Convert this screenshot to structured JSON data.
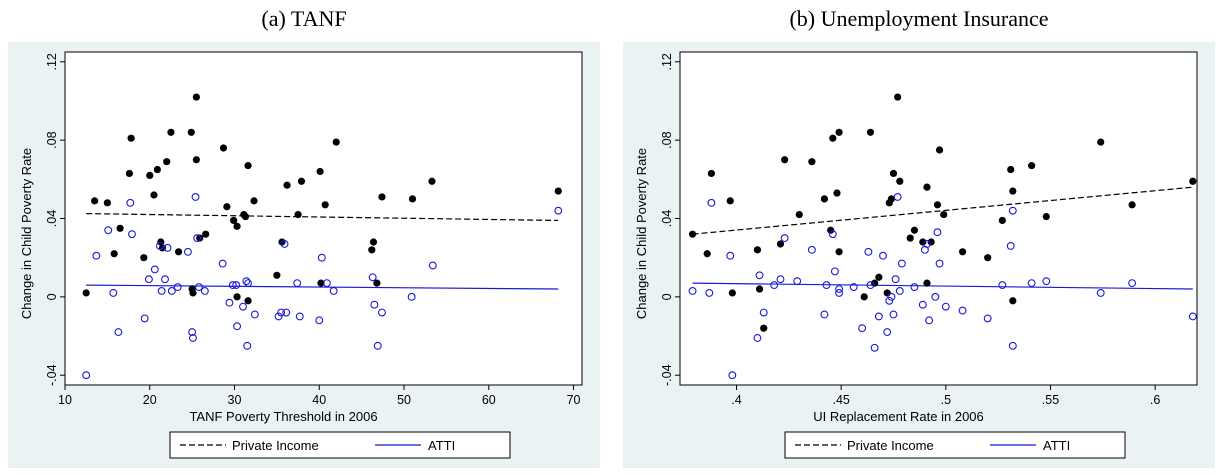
{
  "colors": {
    "panel_bg": "#eaf2f3",
    "plot_bg": "#ffffff",
    "private": "#000000",
    "atti": "#1a1ad8"
  },
  "chart_data": [
    {
      "type": "scatter",
      "title": "(a) TANF",
      "xlabel": "TANF Poverty Threshold in 2006",
      "ylabel": "Change in Child Poverty Rate",
      "xlim": [
        10,
        71
      ],
      "ylim": [
        -0.045,
        0.125
      ],
      "xticks": [
        10,
        20,
        30,
        40,
        50,
        60,
        70
      ],
      "xtick_labels": [
        "10",
        "20",
        "30",
        "40",
        "50",
        "60",
        "70"
      ],
      "yticks": [
        -0.04,
        0,
        0.04,
        0.08,
        0.12
      ],
      "ytick_labels": [
        "-.04",
        "0",
        ".04",
        ".08",
        ".12"
      ],
      "grid": false,
      "legend_position": "bottom",
      "series": [
        {
          "name": "Private Income",
          "marker": "filled-circle",
          "fit_line": [
            [
              12.5,
              0.0425
            ],
            [
              68.2,
              0.039
            ]
          ],
          "points": [
            [
              12.5,
              0.002
            ],
            [
              13.5,
              0.049
            ],
            [
              15,
              0.048
            ],
            [
              15.8,
              0.022
            ],
            [
              16.5,
              0.035
            ],
            [
              17.6,
              0.063
            ],
            [
              17.8,
              0.081
            ],
            [
              19.3,
              0.02
            ],
            [
              20,
              0.062
            ],
            [
              20.5,
              0.052
            ],
            [
              20.9,
              0.065
            ],
            [
              21.3,
              0.028
            ],
            [
              21.5,
              0.025
            ],
            [
              22,
              0.069
            ],
            [
              22.5,
              0.084
            ],
            [
              23.4,
              0.023
            ],
            [
              24.9,
              0.084
            ],
            [
              25,
              0.004
            ],
            [
              25.1,
              0.002
            ],
            [
              25.5,
              0.102
            ],
            [
              25.5,
              0.07
            ],
            [
              25.9,
              0.03
            ],
            [
              26.6,
              0.032
            ],
            [
              28.7,
              0.076
            ],
            [
              29.1,
              0.046
            ],
            [
              29.9,
              0.039
            ],
            [
              30.3,
              0.036
            ],
            [
              30.3,
              0.0
            ],
            [
              31.1,
              0.042
            ],
            [
              31.3,
              0.041
            ],
            [
              31.6,
              0.067
            ],
            [
              31.6,
              -0.002
            ],
            [
              32.3,
              0.049
            ],
            [
              35,
              0.011
            ],
            [
              35.6,
              0.028
            ],
            [
              36.2,
              0.057
            ],
            [
              37.5,
              0.042
            ],
            [
              37.9,
              0.059
            ],
            [
              40.1,
              0.064
            ],
            [
              40.2,
              0.007
            ],
            [
              40.7,
              0.047
            ],
            [
              42,
              0.079
            ],
            [
              46.2,
              0.024
            ],
            [
              46.4,
              0.028
            ],
            [
              46.8,
              0.007
            ],
            [
              47.4,
              0.051
            ],
            [
              51,
              0.05
            ],
            [
              53.3,
              0.059
            ],
            [
              68.2,
              0.054
            ]
          ]
        },
        {
          "name": "ATTI",
          "marker": "hollow-circle",
          "fit_line": [
            [
              12.5,
              0.006
            ],
            [
              68.2,
              0.004
            ]
          ],
          "points": [
            [
              12.5,
              -0.04
            ],
            [
              13.7,
              0.021
            ],
            [
              15.1,
              0.034
            ],
            [
              15.7,
              0.002
            ],
            [
              16.3,
              -0.018
            ],
            [
              17.7,
              0.048
            ],
            [
              17.9,
              0.032
            ],
            [
              19.4,
              -0.011
            ],
            [
              19.9,
              0.009
            ],
            [
              20.6,
              0.014
            ],
            [
              21.2,
              0.026
            ],
            [
              21.4,
              0.003
            ],
            [
              21.8,
              0.009
            ],
            [
              22.1,
              0.025
            ],
            [
              22.6,
              0.003
            ],
            [
              23.3,
              0.005
            ],
            [
              24.5,
              0.023
            ],
            [
              25,
              -0.018
            ],
            [
              25.1,
              -0.021
            ],
            [
              25.4,
              0.051
            ],
            [
              25.6,
              0.03
            ],
            [
              25.8,
              0.005
            ],
            [
              26.5,
              0.003
            ],
            [
              28.6,
              0.017
            ],
            [
              29.4,
              -0.003
            ],
            [
              29.8,
              0.006
            ],
            [
              30.2,
              0.006
            ],
            [
              30.3,
              -0.015
            ],
            [
              31,
              -0.005
            ],
            [
              31.4,
              0.008
            ],
            [
              31.6,
              0.007
            ],
            [
              31.5,
              -0.025
            ],
            [
              32.4,
              -0.009
            ],
            [
              35.2,
              -0.01
            ],
            [
              35.5,
              -0.008
            ],
            [
              35.9,
              0.027
            ],
            [
              36.1,
              -0.008
            ],
            [
              37.4,
              0.007
            ],
            [
              37.7,
              -0.01
            ],
            [
              40.3,
              0.02
            ],
            [
              40,
              -0.012
            ],
            [
              40.9,
              0.007
            ],
            [
              41.7,
              0.003
            ],
            [
              46.3,
              0.01
            ],
            [
              46.5,
              -0.004
            ],
            [
              46.9,
              -0.025
            ],
            [
              47.4,
              -0.008
            ],
            [
              50.9,
              0.0
            ],
            [
              53.4,
              0.016
            ],
            [
              68.2,
              0.044
            ]
          ]
        }
      ]
    },
    {
      "type": "scatter",
      "title": "(b) Unemployment Insurance",
      "xlabel": "UI Replacement Rate in 2006",
      "ylabel": "Change in Child Poverty Rate",
      "xlim": [
        0.373,
        0.62
      ],
      "ylim": [
        -0.045,
        0.125
      ],
      "xticks": [
        0.4,
        0.45,
        0.5,
        0.55,
        0.6
      ],
      "xtick_labels": [
        ".4",
        ".45",
        ".5",
        ".55",
        ".6"
      ],
      "yticks": [
        -0.04,
        0,
        0.04,
        0.08,
        0.12
      ],
      "ytick_labels": [
        "-.04",
        "0",
        ".04",
        ".08",
        ".12"
      ],
      "grid": false,
      "legend_position": "bottom",
      "series": [
        {
          "name": "Private Income",
          "marker": "filled-circle",
          "fit_line": [
            [
              0.379,
              0.032
            ],
            [
              0.618,
              0.056
            ]
          ],
          "points": [
            [
              0.379,
              0.032
            ],
            [
              0.386,
              0.022
            ],
            [
              0.388,
              0.063
            ],
            [
              0.397,
              0.049
            ],
            [
              0.398,
              0.002
            ],
            [
              0.41,
              0.024
            ],
            [
              0.411,
              0.004
            ],
            [
              0.413,
              -0.016
            ],
            [
              0.421,
              0.027
            ],
            [
              0.423,
              0.07
            ],
            [
              0.43,
              0.042
            ],
            [
              0.436,
              0.069
            ],
            [
              0.442,
              0.05
            ],
            [
              0.445,
              0.034
            ],
            [
              0.446,
              0.081
            ],
            [
              0.448,
              0.053
            ],
            [
              0.449,
              0.084
            ],
            [
              0.449,
              0.023
            ],
            [
              0.461,
              0.0
            ],
            [
              0.464,
              0.084
            ],
            [
              0.466,
              0.007
            ],
            [
              0.468,
              0.01
            ],
            [
              0.472,
              0.002
            ],
            [
              0.473,
              0.048
            ],
            [
              0.474,
              0.05
            ],
            [
              0.475,
              0.063
            ],
            [
              0.477,
              0.102
            ],
            [
              0.478,
              0.059
            ],
            [
              0.483,
              0.03
            ],
            [
              0.485,
              0.034
            ],
            [
              0.489,
              0.028
            ],
            [
              0.491,
              0.056
            ],
            [
              0.491,
              0.007
            ],
            [
              0.493,
              0.028
            ],
            [
              0.496,
              0.047
            ],
            [
              0.497,
              0.075
            ],
            [
              0.499,
              0.042
            ],
            [
              0.508,
              0.023
            ],
            [
              0.52,
              0.02
            ],
            [
              0.527,
              0.039
            ],
            [
              0.531,
              0.065
            ],
            [
              0.532,
              0.054
            ],
            [
              0.532,
              -0.002
            ],
            [
              0.541,
              0.067
            ],
            [
              0.548,
              0.041
            ],
            [
              0.574,
              0.079
            ],
            [
              0.589,
              0.047
            ],
            [
              0.618,
              0.059
            ]
          ]
        },
        {
          "name": "ATTI",
          "marker": "hollow-circle",
          "fit_line": [
            [
              0.379,
              0.007
            ],
            [
              0.618,
              0.004
            ]
          ],
          "points": [
            [
              0.379,
              0.003
            ],
            [
              0.387,
              0.002
            ],
            [
              0.388,
              0.048
            ],
            [
              0.397,
              0.021
            ],
            [
              0.398,
              -0.04
            ],
            [
              0.41,
              -0.021
            ],
            [
              0.411,
              0.011
            ],
            [
              0.413,
              -0.008
            ],
            [
              0.418,
              0.006
            ],
            [
              0.421,
              0.009
            ],
            [
              0.423,
              0.03
            ],
            [
              0.429,
              0.008
            ],
            [
              0.436,
              0.024
            ],
            [
              0.442,
              -0.009
            ],
            [
              0.443,
              0.006
            ],
            [
              0.446,
              0.032
            ],
            [
              0.447,
              0.013
            ],
            [
              0.449,
              0.004
            ],
            [
              0.449,
              0.002
            ],
            [
              0.456,
              0.005
            ],
            [
              0.46,
              -0.016
            ],
            [
              0.463,
              0.023
            ],
            [
              0.464,
              0.006
            ],
            [
              0.466,
              -0.026
            ],
            [
              0.468,
              -0.01
            ],
            [
              0.47,
              0.021
            ],
            [
              0.472,
              -0.018
            ],
            [
              0.473,
              -0.002
            ],
            [
              0.474,
              0.0
            ],
            [
              0.475,
              -0.009
            ],
            [
              0.476,
              0.009
            ],
            [
              0.477,
              0.051
            ],
            [
              0.478,
              0.003
            ],
            [
              0.479,
              0.017
            ],
            [
              0.485,
              0.005
            ],
            [
              0.489,
              -0.004
            ],
            [
              0.49,
              0.024
            ],
            [
              0.491,
              0.027
            ],
            [
              0.492,
              -0.012
            ],
            [
              0.495,
              0.0
            ],
            [
              0.496,
              0.033
            ],
            [
              0.497,
              0.017
            ],
            [
              0.5,
              -0.005
            ],
            [
              0.508,
              -0.007
            ],
            [
              0.52,
              -0.011
            ],
            [
              0.527,
              0.006
            ],
            [
              0.531,
              0.026
            ],
            [
              0.532,
              0.044
            ],
            [
              0.532,
              -0.025
            ],
            [
              0.541,
              0.007
            ],
            [
              0.548,
              0.008
            ],
            [
              0.574,
              0.002
            ],
            [
              0.589,
              0.007
            ],
            [
              0.618,
              -0.01
            ]
          ]
        }
      ]
    }
  ]
}
